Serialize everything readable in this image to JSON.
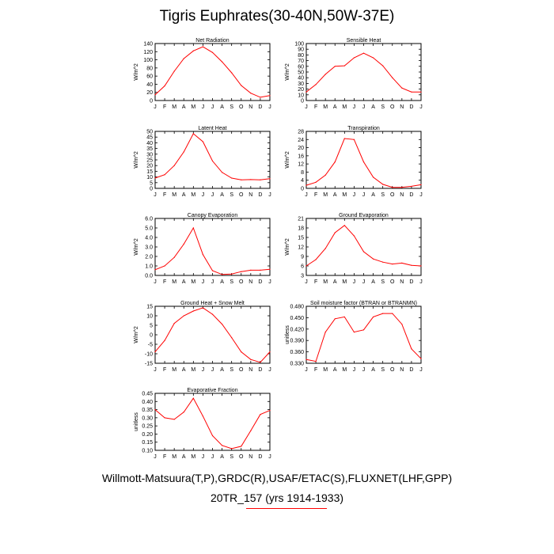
{
  "title": "Tigris Euphrates(30-40N,50W-37E)",
  "footer": {
    "line1": "Willmott-Matsuura(T,P),GRDC(R),USAF/ETAC(S),FLUXNET(LHF,GPP)",
    "line2": "20TR_157 (yrs 1914-1933)"
  },
  "colors": {
    "line": "#ff0000",
    "axis": "#000000"
  },
  "chart_data": [
    {
      "type": "line",
      "title": "Net Radiation",
      "ylabel": "W/m^2",
      "categories": [
        "J",
        "F",
        "M",
        "A",
        "M",
        "J",
        "J",
        "A",
        "S",
        "O",
        "N",
        "D",
        "J"
      ],
      "ylim": [
        0,
        140
      ],
      "yticks": [
        "0",
        "20",
        "40",
        "60",
        "80",
        "100",
        "120",
        "140"
      ],
      "values": [
        14,
        36,
        72,
        103,
        122,
        132,
        118,
        95,
        68,
        37,
        18,
        8,
        12
      ]
    },
    {
      "type": "line",
      "title": "Sensible Heat",
      "ylabel": "W/m^2",
      "categories": [
        "J",
        "F",
        "M",
        "A",
        "M",
        "J",
        "J",
        "A",
        "S",
        "O",
        "N",
        "D",
        "J"
      ],
      "ylim": [
        0,
        100
      ],
      "yticks": [
        "0",
        "10",
        "20",
        "30",
        "40",
        "50",
        "60",
        "70",
        "80",
        "90",
        "100"
      ],
      "values": [
        15,
        28,
        46,
        60,
        61,
        75,
        83,
        75,
        61,
        40,
        22,
        15,
        15
      ]
    },
    {
      "type": "line",
      "title": "Latent Heat",
      "ylabel": "W/m^2",
      "categories": [
        "J",
        "F",
        "M",
        "A",
        "M",
        "J",
        "J",
        "A",
        "S",
        "O",
        "N",
        "D",
        "J"
      ],
      "ylim": [
        0,
        50
      ],
      "yticks": [
        "0",
        "5",
        "10",
        "15",
        "20",
        "25",
        "30",
        "35",
        "40",
        "45",
        "50"
      ],
      "values": [
        9,
        12,
        20,
        32,
        48,
        41,
        24,
        14,
        9,
        7.5,
        7.7,
        7.5,
        8.5
      ]
    },
    {
      "type": "line",
      "title": "Transpiration",
      "ylabel": "W/m^2",
      "categories": [
        "J",
        "F",
        "M",
        "A",
        "M",
        "J",
        "J",
        "A",
        "S",
        "O",
        "N",
        "D",
        "J"
      ],
      "ylim": [
        0,
        28
      ],
      "yticks": [
        "0",
        "4",
        "8",
        "12",
        "16",
        "20",
        "24",
        "28"
      ],
      "values": [
        1.5,
        3,
        6.5,
        13,
        24.5,
        24,
        13,
        5.5,
        2,
        0.5,
        0.5,
        1,
        1.8
      ]
    },
    {
      "type": "line",
      "title": "Canopy Evaporation",
      "ylabel": "W/m^2",
      "categories": [
        "J",
        "F",
        "M",
        "A",
        "M",
        "J",
        "J",
        "A",
        "S",
        "O",
        "N",
        "D",
        "J"
      ],
      "ylim": [
        0,
        6
      ],
      "yticks": [
        "0.0",
        "1.0",
        "2.0",
        "3.0",
        "4.0",
        "5.0",
        "6.0"
      ],
      "values": [
        0.6,
        1,
        1.9,
        3.3,
        5,
        2.2,
        0.5,
        0.1,
        0.15,
        0.4,
        0.55,
        0.55,
        0.65
      ]
    },
    {
      "type": "line",
      "title": "Ground Evaporation",
      "ylabel": "W/m^2",
      "categories": [
        "J",
        "F",
        "M",
        "A",
        "M",
        "J",
        "J",
        "A",
        "S",
        "O",
        "N",
        "D",
        "J"
      ],
      "ylim": [
        3,
        21
      ],
      "yticks": [
        "3",
        "6",
        "9",
        "12",
        "15",
        "18",
        "21"
      ],
      "values": [
        6,
        8,
        11.5,
        16.5,
        18.8,
        15.5,
        10.5,
        8.2,
        7.2,
        6.6,
        6.9,
        6.2,
        6
      ]
    },
    {
      "type": "line",
      "title": "Ground Heat + Snow Melt",
      "ylabel": "W/m^2",
      "categories": [
        "J",
        "F",
        "M",
        "A",
        "M",
        "J",
        "J",
        "A",
        "S",
        "O",
        "N",
        "D",
        "J"
      ],
      "ylim": [
        -15,
        15
      ],
      "yticks": [
        "-15",
        "-10",
        "-5",
        "0",
        "5",
        "10",
        "15"
      ],
      "values": [
        -9,
        -3,
        6,
        10,
        12.5,
        14.2,
        10.8,
        5.6,
        -1.5,
        -9,
        -13,
        -14.5,
        -9
      ]
    },
    {
      "type": "line",
      "title": "Soil moisture factor (BTRAN or BTRANMN)",
      "ylabel": "unitless",
      "categories": [
        "J",
        "F",
        "M",
        "A",
        "M",
        "J",
        "J",
        "A",
        "S",
        "O",
        "N",
        "D",
        "J"
      ],
      "ylim": [
        0.33,
        0.48
      ],
      "yticks": [
        "0.330",
        "0.360",
        "0.390",
        "0.420",
        "0.450",
        "0.480"
      ],
      "values": [
        0.34,
        0.335,
        0.412,
        0.447,
        0.452,
        0.412,
        0.418,
        0.452,
        0.461,
        0.461,
        0.433,
        0.368,
        0.342
      ]
    },
    {
      "type": "line",
      "title": "Evaporative Fraction",
      "ylabel": "unitless",
      "categories": [
        "J",
        "F",
        "M",
        "A",
        "M",
        "J",
        "J",
        "A",
        "S",
        "O",
        "N",
        "D",
        "J"
      ],
      "ylim": [
        0.1,
        0.45
      ],
      "yticks": [
        "0.10",
        "0.15",
        "0.20",
        "0.25",
        "0.30",
        "0.35",
        "0.40",
        "0.45"
      ],
      "values": [
        0.35,
        0.3,
        0.29,
        0.335,
        0.42,
        0.31,
        0.19,
        0.13,
        0.11,
        0.125,
        0.22,
        0.32,
        0.345
      ]
    }
  ]
}
